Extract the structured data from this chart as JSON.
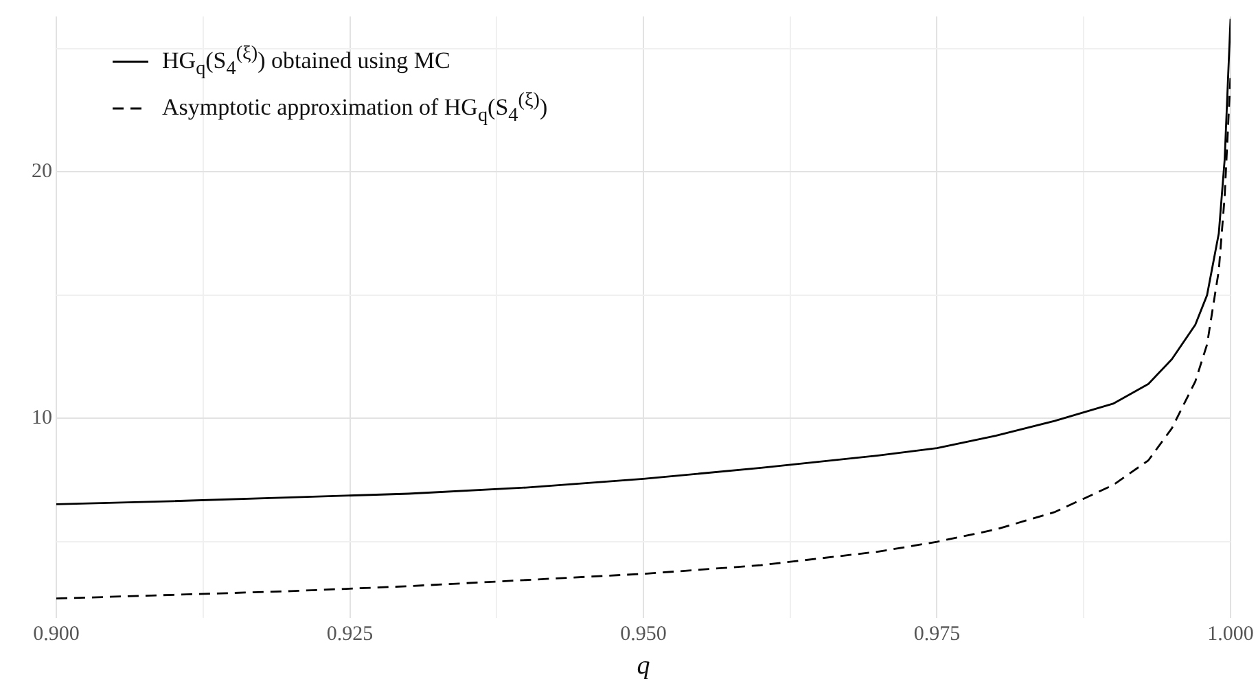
{
  "chart_data": {
    "type": "line",
    "xlabel": "q",
    "legend": "top left",
    "grid": true,
    "marker": "none",
    "x": [
      0.9,
      0.91,
      0.92,
      0.93,
      0.94,
      0.95,
      0.96,
      0.97,
      0.975,
      0.98,
      0.985,
      0.99,
      0.993,
      0.995,
      0.997,
      0.998,
      0.999,
      0.9995,
      1.0
    ],
    "series": [
      {
        "name": "HG$_{q}$(S$_{4}$$^{(ξ)}$) obtained using MC",
        "color": "#000000",
        "line_style": "solid",
        "values": [
          6.52,
          6.65,
          6.8,
          6.95,
          7.2,
          7.55,
          8.0,
          8.5,
          8.8,
          9.3,
          9.9,
          10.6,
          11.4,
          12.4,
          13.8,
          15,
          17.5,
          20.5,
          26.2
        ]
      },
      {
        "name": "Asymptotic approximation of HG$_{q}$(S$_{4}$$^{(ξ)}$)",
        "color": "#000000",
        "line_style": "dashed",
        "values": [
          2.7,
          2.85,
          3.0,
          3.2,
          3.45,
          3.7,
          4.05,
          4.6,
          5.0,
          5.5,
          6.2,
          7.3,
          8.3,
          9.6,
          11.5,
          13,
          16,
          19,
          23.9
        ]
      }
    ],
    "xlim": [
      0.9,
      1.0
    ],
    "xticks": [
      {
        "value": 0.9,
        "label": "0.900"
      },
      {
        "value": 0.9125,
        "label": null
      },
      {
        "value": 0.925,
        "label": "0.925"
      },
      {
        "value": 0.9375,
        "label": null
      },
      {
        "value": 0.95,
        "label": "0.950"
      },
      {
        "value": 0.9625,
        "label": null
      },
      {
        "value": 0.975,
        "label": "0.975"
      },
      {
        "value": 0.9875,
        "label": null
      },
      {
        "value": 1.0,
        "label": "1.000"
      }
    ],
    "ylim": [
      1.9,
      26.3
    ],
    "yticks": [
      {
        "value": 5,
        "label": null
      },
      10,
      {
        "value": 15,
        "label": null
      },
      20,
      {
        "value": 25,
        "label": null
      }
    ]
  }
}
